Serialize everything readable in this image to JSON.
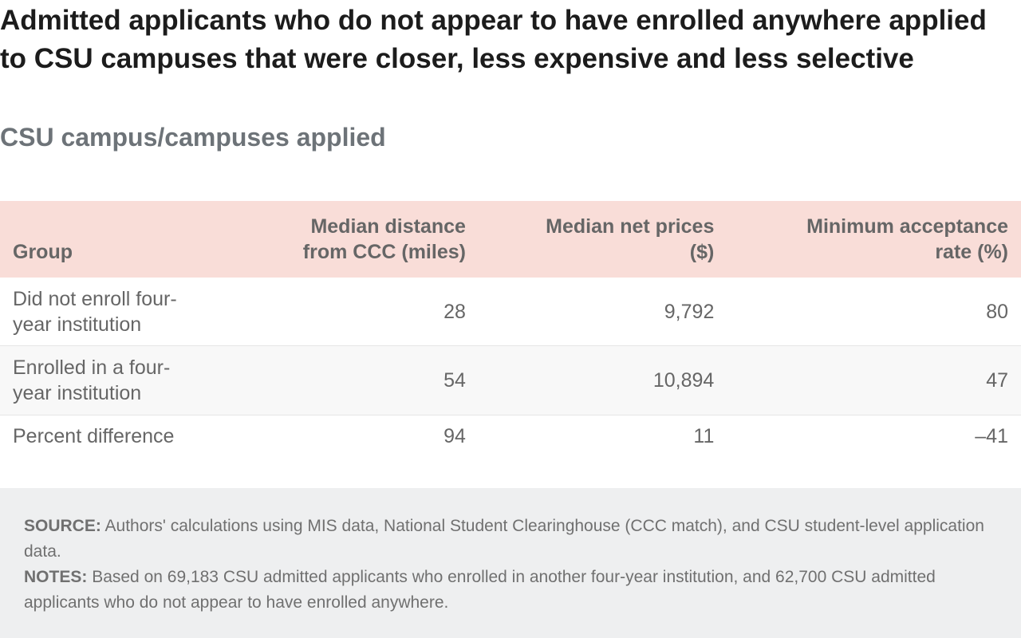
{
  "chart_data": {
    "type": "table",
    "title": "Admitted applicants who do not appear to have enrolled anywhere applied to CSU campuses that were closer, less expensive and less selective",
    "subtitle": "CSU campus/campuses applied",
    "columns": [
      "Group",
      "Median distance from CCC (miles)",
      "Median net prices ($)",
      "Minimum acceptance rate (%)"
    ],
    "rows": [
      {
        "group": "Did not enroll four-year institution",
        "distance": "28",
        "price": "9,792",
        "acceptance": "80"
      },
      {
        "group": "Enrolled in a four-year institution",
        "distance": "54",
        "price": "10,894",
        "acceptance": "47"
      },
      {
        "group": "Percent difference",
        "distance": "94",
        "price": "11",
        "acceptance": "–41"
      }
    ]
  },
  "footer": {
    "source_label": "SOURCE:",
    "source_text": "Authors' calculations using MIS data, National Student Clearinghouse (CCC match), and CSU student-level application data.",
    "notes_label": "NOTES:",
    "notes_text": "Based on 69,183 CSU admitted applicants who enrolled in another four-year institution, and 62,700 CSU admitted applicants who do not appear to have enrolled anywhere."
  }
}
